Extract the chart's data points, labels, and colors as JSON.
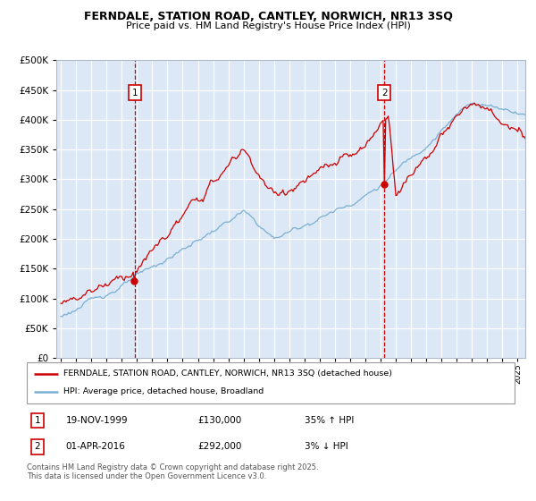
{
  "title1": "FERNDALE, STATION ROAD, CANTLEY, NORWICH, NR13 3SQ",
  "title2": "Price paid vs. HM Land Registry's House Price Index (HPI)",
  "background_color": "#dce8f5",
  "sale1_date_label": "19-NOV-1999",
  "sale1_price": 130000,
  "sale1_hpi_text": "35% ↑ HPI",
  "sale1_year": 1999.875,
  "sale2_date_label": "01-APR-2016",
  "sale2_price": 292000,
  "sale2_hpi_text": "3% ↓ HPI",
  "sale2_year": 2016.25,
  "legend_line1": "FERNDALE, STATION ROAD, CANTLEY, NORWICH, NR13 3SQ (detached house)",
  "legend_line2": "HPI: Average price, detached house, Broadland",
  "footer_text": "Contains HM Land Registry data © Crown copyright and database right 2025.\nThis data is licensed under the Open Government Licence v3.0.",
  "red_color": "#cc0000",
  "blue_color": "#7aafd4",
  "vline_color": "#cc0000",
  "ylim_min": 0,
  "ylim_max": 500000,
  "xlim_min": 1994.7,
  "xlim_max": 2025.5
}
